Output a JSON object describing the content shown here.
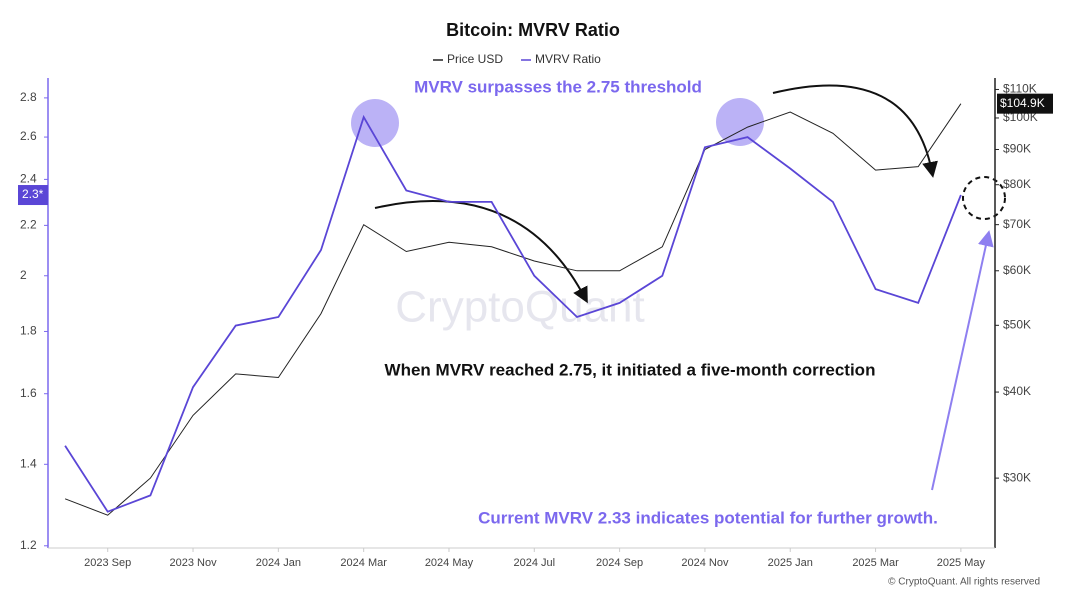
{
  "chart_data": {
    "type": "line",
    "title": "Bitcoin: MVRV Ratio",
    "legend": "top",
    "x": [
      "2023-08",
      "2023-09",
      "2023-10",
      "2023-11",
      "2023-12",
      "2024-01",
      "2024-02",
      "2024-03",
      "2024-04",
      "2024-05",
      "2024-06",
      "2024-07",
      "2024-08",
      "2024-09",
      "2024-10",
      "2024-11",
      "2024-12",
      "2025-01",
      "2025-02",
      "2025-03",
      "2025-04",
      "2025-05"
    ],
    "xticks": [
      {
        "value": "2023-09",
        "label": "2023 Sep"
      },
      {
        "value": "2023-11",
        "label": "2023 Nov"
      },
      {
        "value": "2024-01",
        "label": "2024 Jan"
      },
      {
        "value": "2024-03",
        "label": "2024 Mar"
      },
      {
        "value": "2024-05",
        "label": "2024 May"
      },
      {
        "value": "2024-07",
        "label": "2024 Jul"
      },
      {
        "value": "2024-09",
        "label": "2024 Sep"
      },
      {
        "value": "2024-11",
        "label": "2024 Nov"
      },
      {
        "value": "2025-01",
        "label": "2025 Jan"
      },
      {
        "value": "2025-03",
        "label": "2025 Mar"
      },
      {
        "value": "2025-05",
        "label": "2025 May"
      }
    ],
    "series": [
      {
        "name": "Price USD",
        "color": "#222222",
        "axis": "y2",
        "values": [
          28000,
          26500,
          30000,
          37000,
          42500,
          42000,
          52000,
          70000,
          64000,
          66000,
          65000,
          62000,
          60000,
          60000,
          65000,
          90000,
          97000,
          102000,
          95000,
          84000,
          85000,
          104900
        ]
      },
      {
        "name": "MVRV Ratio",
        "color": "#5a46d6",
        "values": [
          1.45,
          1.28,
          1.32,
          1.62,
          1.82,
          1.85,
          2.1,
          2.7,
          2.35,
          2.3,
          2.3,
          2.0,
          1.85,
          1.9,
          2.0,
          2.55,
          2.6,
          2.45,
          2.3,
          1.95,
          1.9,
          2.33
        ]
      }
    ],
    "ylim": [
      1.195,
      2.88
    ],
    "yticks": [
      1.2,
      1.4,
      1.6,
      1.8,
      2,
      2.2,
      2.4,
      2.6,
      2.8
    ],
    "y_log": true,
    "y2lim": [
      23750,
      112400
    ],
    "y2ticks": [
      {
        "value": 30000,
        "label": "$30K"
      },
      {
        "value": 40000,
        "label": "$40K"
      },
      {
        "value": 50000,
        "label": "$50K"
      },
      {
        "value": 60000,
        "label": "$60K"
      },
      {
        "value": 70000,
        "label": "$70K"
      },
      {
        "value": 80000,
        "label": "$80K"
      },
      {
        "value": 90000,
        "label": "$90K"
      },
      {
        "value": 100000,
        "label": "$100K"
      },
      {
        "value": 110000,
        "label": "$110K"
      }
    ],
    "y2_log": true,
    "y_current_label": "2.3*",
    "y2_current_label": "$104.9K",
    "annotations": [
      "MVRV surpasses the 2.75 threshold",
      "When MVRV reached 2.75, it initiated a five-month correction",
      "Current MVRV 2.33 indicates potential for further growth."
    ],
    "watermark": "CryptoQuant",
    "footer": "© CryptoQuant. All rights reserved"
  }
}
